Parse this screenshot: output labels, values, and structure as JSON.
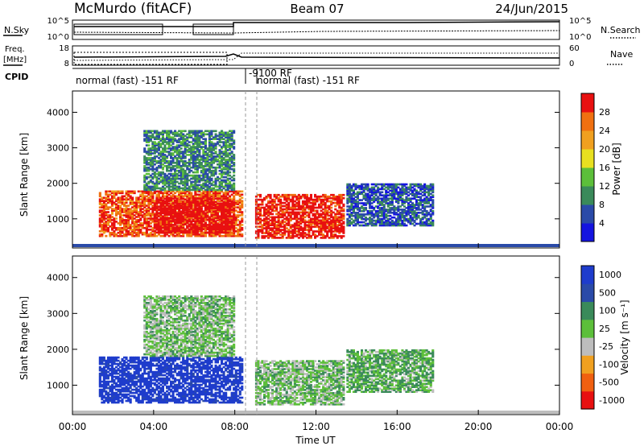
{
  "header": {
    "station": "McMurdo (fitACF)",
    "beam": "Beam 07",
    "date": "24/Jun/2015"
  },
  "noise_panel": {
    "left_label": "N.Sky",
    "left_ticks": [
      "10^5",
      "10^0"
    ],
    "right_label": "N.Search",
    "right_ticks": [
      "10^5",
      "10^0"
    ]
  },
  "freq_panel": {
    "left_label_1": "Freq.",
    "left_label_2": "[MHz]",
    "left_ticks": [
      "18",
      "8"
    ],
    "right_label": "Nave",
    "right_ticks": [
      "60",
      "0"
    ]
  },
  "cpid": {
    "label": "CPID",
    "segments": [
      {
        "start": 0.0,
        "end": 8.7,
        "text": "normal (fast) -151 RF"
      },
      {
        "start": 8.7,
        "end": 9.1,
        "text": "-9100 RF"
      },
      {
        "start": 9.1,
        "end": 24.0,
        "text": "normal (fast) -151 RF"
      }
    ]
  },
  "colors": {
    "power": [
      "#1414e0",
      "#2a4aa8",
      "#3a8a5a",
      "#5cbf3a",
      "#e8e020",
      "#f0a020",
      "#f07010",
      "#e81010"
    ],
    "velocity": [
      "#e81010",
      "#f06010",
      "#f0a020",
      "#bdbdbd",
      "#5cbf3a",
      "#3a8a5a",
      "#2a4aa8",
      "#1e3ccc"
    ]
  },
  "chart_data": [
    {
      "type": "heatmap",
      "name": "Power",
      "ylabel": "Slant Range [km]",
      "xlabel": "",
      "x_ticks": [
        "00:00",
        "04:00",
        "08:00",
        "12:00",
        "16:00",
        "20:00",
        "00:00"
      ],
      "xlim": [
        0,
        24
      ],
      "y_ticks": [
        1000,
        2000,
        3000,
        4000
      ],
      "ylim": [
        180,
        4600
      ],
      "colorbar": {
        "label": "Power [dB]",
        "ticks": [
          "4",
          "8",
          "12",
          "16",
          "20",
          "24",
          "28"
        ],
        "range": [
          0,
          32
        ]
      },
      "echo_regions": [
        {
          "t0": 1.3,
          "t1": 8.4,
          "r0": 500,
          "r1": 1800,
          "level": 0.85
        },
        {
          "t0": 4.0,
          "t1": 8.0,
          "r0": 600,
          "r1": 1600,
          "level": 1.0
        },
        {
          "t0": 9.0,
          "t1": 13.4,
          "r0": 450,
          "r1": 1700,
          "level": 0.95
        },
        {
          "t0": 13.5,
          "t1": 17.8,
          "r0": 800,
          "r1": 2000,
          "level": 0.2
        },
        {
          "t0": 3.5,
          "t1": 8.0,
          "r0": 1800,
          "r1": 3500,
          "level": 0.3
        }
      ]
    },
    {
      "type": "heatmap",
      "name": "Velocity",
      "ylabel": "Slant Range [km]",
      "xlabel": "Time UT",
      "x_ticks": [
        "00:00",
        "04:00",
        "08:00",
        "12:00",
        "16:00",
        "20:00",
        "00:00"
      ],
      "xlim": [
        0,
        24
      ],
      "y_ticks": [
        1000,
        2000,
        3000,
        4000
      ],
      "ylim": [
        180,
        4600
      ],
      "colorbar": {
        "label": "Velocity [m s⁻¹]",
        "ticks": [
          "1000",
          "500",
          "100",
          "25",
          "-25",
          "-100",
          "-500",
          "-1000"
        ],
        "range": [
          -1200,
          1200
        ]
      },
      "echo_regions": [
        {
          "t0": 1.3,
          "t1": 8.4,
          "r0": 500,
          "r1": 1800,
          "level": 1.0
        },
        {
          "t0": 9.0,
          "t1": 13.4,
          "r0": 450,
          "r1": 1700,
          "level": 0.55
        },
        {
          "t0": 13.5,
          "t1": 17.8,
          "r0": 800,
          "r1": 2000,
          "level": 0.6
        },
        {
          "t0": 3.5,
          "t1": 8.0,
          "r0": 1800,
          "r1": 3500,
          "level": 0.55
        }
      ]
    }
  ]
}
